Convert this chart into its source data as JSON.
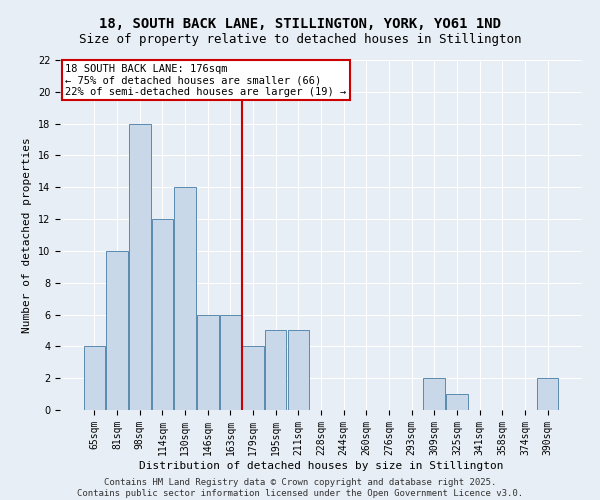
{
  "title": "18, SOUTH BACK LANE, STILLINGTON, YORK, YO61 1ND",
  "subtitle": "Size of property relative to detached houses in Stillington",
  "xlabel": "Distribution of detached houses by size in Stillington",
  "ylabel": "Number of detached properties",
  "categories": [
    "65sqm",
    "81sqm",
    "98sqm",
    "114sqm",
    "130sqm",
    "146sqm",
    "163sqm",
    "179sqm",
    "195sqm",
    "211sqm",
    "228sqm",
    "244sqm",
    "260sqm",
    "276sqm",
    "293sqm",
    "309sqm",
    "325sqm",
    "341sqm",
    "358sqm",
    "374sqm",
    "390sqm"
  ],
  "values": [
    4,
    10,
    18,
    12,
    14,
    6,
    6,
    4,
    5,
    5,
    0,
    0,
    0,
    0,
    0,
    2,
    1,
    0,
    0,
    0,
    2
  ],
  "bar_color": "#c8d8e8",
  "bar_edge_color": "#5a8ab0",
  "redline_index": 7,
  "redline_label": "18 SOUTH BACK LANE: 176sqm",
  "annotation_line2": "← 75% of detached houses are smaller (66)",
  "annotation_line3": "22% of semi-detached houses are larger (19) →",
  "annotation_box_color": "#ffffff",
  "annotation_box_edge": "#cc0000",
  "redline_color": "#cc0000",
  "ylim": [
    0,
    22
  ],
  "yticks": [
    0,
    2,
    4,
    6,
    8,
    10,
    12,
    14,
    16,
    18,
    20,
    22
  ],
  "background_color": "#e8eef5",
  "grid_color": "#ffffff",
  "footer": "Contains HM Land Registry data © Crown copyright and database right 2025.\nContains public sector information licensed under the Open Government Licence v3.0.",
  "title_fontsize": 10,
  "subtitle_fontsize": 9,
  "xlabel_fontsize": 8,
  "ylabel_fontsize": 8,
  "tick_fontsize": 7,
  "annotation_fontsize": 7.5,
  "footer_fontsize": 6.5
}
